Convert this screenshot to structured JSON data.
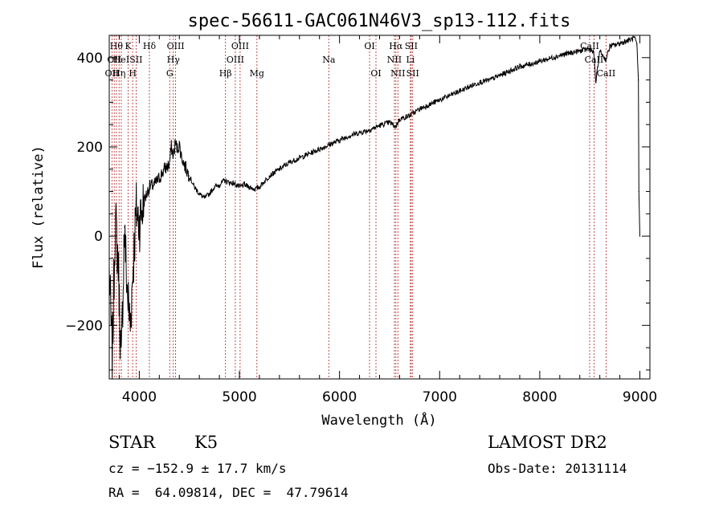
{
  "chart_data": {
    "type": "line",
    "title": "spec-56611-GAC061N46V3_sp13-112.fits",
    "xlabel": "Wavelength (Å)",
    "ylabel": "Flux (relative)",
    "xlim": [
      3700,
      9100
    ],
    "ylim": [
      -320,
      450
    ],
    "xticks": [
      {
        "value": 4000,
        "label": "4000"
      },
      {
        "value": 5000,
        "label": "5000"
      },
      {
        "value": 6000,
        "label": "6000"
      },
      {
        "value": 7000,
        "label": "7000"
      },
      {
        "value": 8000,
        "label": "8000"
      },
      {
        "value": 9000,
        "label": "9000"
      }
    ],
    "yticks": [
      {
        "value": -200,
        "label": "−200"
      },
      {
        "value": 0,
        "label": "0"
      },
      {
        "value": 200,
        "label": "200"
      },
      {
        "value": 400,
        "label": "400"
      }
    ],
    "grid": false,
    "series": [
      {
        "x": [
          3700,
          3730,
          3760,
          3790,
          3820,
          3850,
          3880,
          3910,
          3940,
          3970,
          4000,
          4050,
          4100,
          4150,
          4200,
          4250,
          4300,
          4320,
          4340,
          4360,
          4380,
          4400,
          4420,
          4450,
          4500,
          4550,
          4600,
          4650,
          4700,
          4750,
          4800,
          4850,
          4900,
          4950,
          5000,
          5050,
          5100,
          5150,
          5200,
          5300,
          5400,
          5500,
          5600,
          5700,
          5800,
          5900,
          6000,
          6100,
          6200,
          6300,
          6400,
          6500,
          6560,
          6600,
          6700,
          6800,
          6900,
          7000,
          7100,
          7200,
          7300,
          7400,
          7500,
          7600,
          7700,
          7800,
          7900,
          8000,
          8100,
          8200,
          8300,
          8400,
          8500,
          8540,
          8560,
          8600,
          8660,
          8700,
          8800,
          8900,
          8950,
          8970,
          8985,
          8990,
          9000
        ],
        "y": [
          -80,
          -280,
          40,
          -60,
          -300,
          20,
          -120,
          -200,
          -60,
          60,
          30,
          80,
          110,
          115,
          130,
          150,
          160,
          200,
          180,
          210,
          195,
          205,
          180,
          160,
          135,
          110,
          95,
          85,
          95,
          110,
          115,
          125,
          120,
          118,
          110,
          115,
          110,
          105,
          110,
          135,
          150,
          165,
          175,
          185,
          195,
          205,
          215,
          225,
          232,
          238,
          248,
          255,
          245,
          262,
          270,
          285,
          295,
          305,
          315,
          325,
          335,
          345,
          350,
          360,
          370,
          380,
          385,
          392,
          398,
          405,
          410,
          415,
          420,
          410,
          345,
          415,
          395,
          425,
          432,
          440,
          445,
          430,
          350,
          100,
          0
        ]
      }
    ],
    "lines": [
      {
        "wl": 3727,
        "label": "OII",
        "row": 3
      },
      {
        "wl": 3750,
        "label": "OII",
        "row": 2
      },
      {
        "wl": 3771,
        "label": "Hθ",
        "row": 1
      },
      {
        "wl": 3798,
        "label": "Hη",
        "row": 3
      },
      {
        "wl": 3820,
        "label": "HeI",
        "row": 2
      },
      {
        "wl": 3889,
        "label": "K",
        "row": 1
      },
      {
        "wl": 3934,
        "label": "H",
        "row": 3
      },
      {
        "wl": 3968,
        "label": "SII",
        "row": 2
      },
      {
        "wl": 4101,
        "label": "Hδ",
        "row": 1
      },
      {
        "wl": 4304,
        "label": "G",
        "row": 3
      },
      {
        "wl": 4340,
        "label": "Hγ",
        "row": 2
      },
      {
        "wl": 4363,
        "label": "OIII",
        "row": 1
      },
      {
        "wl": 4861,
        "label": "Hβ",
        "row": 3
      },
      {
        "wl": 4959,
        "label": "OIII",
        "row": 2
      },
      {
        "wl": 5007,
        "label": "OIII",
        "row": 1
      },
      {
        "wl": 5175,
        "label": "Mg",
        "row": 3
      },
      {
        "wl": 5893,
        "label": "Na",
        "row": 2
      },
      {
        "wl": 6300,
        "label": "OI",
        "row": 1
      },
      {
        "wl": 6364,
        "label": "OI",
        "row": 3
      },
      {
        "wl": 6548,
        "label": "NII",
        "row": 2
      },
      {
        "wl": 6563,
        "label": "Hα",
        "row": 1
      },
      {
        "wl": 6583,
        "label": "NII",
        "row": 3
      },
      {
        "wl": 6708,
        "label": "Li",
        "row": 2
      },
      {
        "wl": 6716,
        "label": "SII",
        "row": 1
      },
      {
        "wl": 6731,
        "label": "SII",
        "row": 3
      },
      {
        "wl": 8498,
        "label": "CaII",
        "row": 1
      },
      {
        "wl": 8542,
        "label": "CaII",
        "row": 2
      },
      {
        "wl": 8662,
        "label": "CaII",
        "row": 3
      }
    ]
  },
  "info": {
    "class": "STAR",
    "subclass": "K5",
    "survey": "LAMOST DR2",
    "cz": "cz = −152.9 ± 17.7 km/s",
    "obs_date": "Obs-Date: 20131114",
    "radec": "RA =  64.09814, DEC =  47.79614"
  }
}
